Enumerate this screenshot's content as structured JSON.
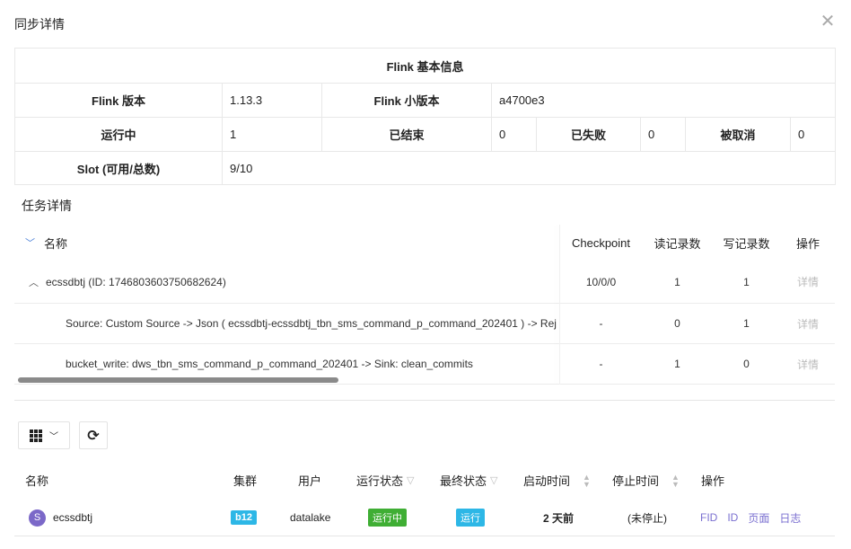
{
  "dialog": {
    "title": "同步详情"
  },
  "info": {
    "header": "Flink 基本信息",
    "flink_version_label": "Flink 版本",
    "flink_version": "1.13.3",
    "flink_minor_label": "Flink 小版本",
    "flink_minor": "a4700e3",
    "running_label": "运行中",
    "running": "1",
    "finished_label": "已结束",
    "finished": "0",
    "failed_label": "已失败",
    "failed": "0",
    "cancelled_label": "被取消",
    "cancelled": "0",
    "slot_label": "Slot (可用/总数)",
    "slot": "9/10"
  },
  "tasks": {
    "section_title": "任务详情",
    "columns": [
      "名称",
      "Checkpoint",
      "读记录数",
      "写记录数",
      "操作"
    ],
    "rows": [
      {
        "name": "ecssdbtj (ID: 1746803603750682624)",
        "checkpoint": "10/0/0",
        "read": "1",
        "write": "1",
        "action": "详情"
      },
      {
        "name": "Source: Custom Source -> Json ( ecssdbtj-ecssdbtj_tbn_sms_command_p_command_202401 ) -> Rej",
        "checkpoint": "-",
        "read": "0",
        "write": "1",
        "action": "详情"
      },
      {
        "name": "bucket_write: dws_tbn_sms_command_p_command_202401 -> Sink: clean_commits",
        "checkpoint": "-",
        "read": "1",
        "write": "0",
        "action": "详情"
      }
    ]
  },
  "jobs": {
    "columns": [
      "名称",
      "集群",
      "用户",
      "运行状态",
      "最终状态",
      "启动时间",
      "停止时间",
      "操作"
    ],
    "rows": [
      {
        "avatar": "S",
        "name": "ecssdbtj",
        "cluster": "b12",
        "user": "datalake",
        "run_state": "运行中",
        "final_state": "运行",
        "start": "2 天前",
        "stop": "(未停止)",
        "actions": [
          "FID",
          "ID",
          "页面",
          "日志"
        ]
      }
    ]
  },
  "colors": {
    "accent": "#7a6fd0",
    "cluster_tag": "#2db7e6",
    "running_tag": "#3fae34",
    "final_tag": "#2db7e6",
    "avatar": "#7b68c8"
  }
}
